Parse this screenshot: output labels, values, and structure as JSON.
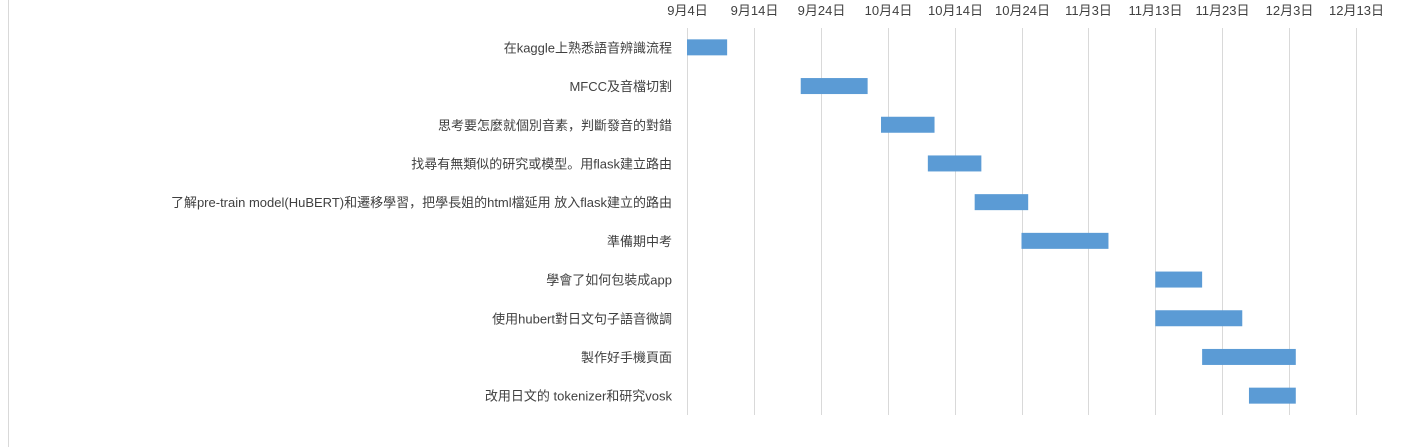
{
  "chart_data": {
    "type": "bar",
    "orientation": "horizontal",
    "title": "",
    "xlabel": "",
    "ylabel": "",
    "x_axis": {
      "position": "top",
      "ticks": [
        "9月4日",
        "9月14日",
        "9月24日",
        "10月4日",
        "10月14日",
        "10月24日",
        "11月3日",
        "11月13日",
        "11月23日",
        "12月3日",
        "12月13日"
      ],
      "tick_dates": [
        "2023-09-04",
        "2023-09-14",
        "2023-09-24",
        "2023-10-04",
        "2023-10-14",
        "2023-10-24",
        "2023-11-03",
        "2023-11-13",
        "2023-11-23",
        "2023-12-03",
        "2023-12-13"
      ],
      "range": [
        "2023-09-04",
        "2023-12-13"
      ],
      "gridlines": true
    },
    "bar_color": "#5b9bd5",
    "grid_color": "#d9d9d9",
    "tasks": [
      {
        "label": "在kaggle上熟悉語音辨識流程",
        "start": "2023-09-04",
        "end": "2023-09-10"
      },
      {
        "label": "MFCC及音檔切割",
        "start": "2023-09-21",
        "end": "2023-10-01"
      },
      {
        "label": "思考要怎麼就個別音素，判斷發音的對錯",
        "start": "2023-10-03",
        "end": "2023-10-11"
      },
      {
        "label": "找尋有無類似的研究或模型。用flask建立路由",
        "start": "2023-10-10",
        "end": "2023-10-18"
      },
      {
        "label": "了解pre-train model(HuBERT)和遷移學習，把學長姐的html檔延用 放入flask建立的路由",
        "start": "2023-10-17",
        "end": "2023-10-25"
      },
      {
        "label": "準備期中考",
        "start": "2023-10-24",
        "end": "2023-11-06"
      },
      {
        "label": "學會了如何包裝成app",
        "start": "2023-11-13",
        "end": "2023-11-20"
      },
      {
        "label": "使用hubert對日文句子語音微調",
        "start": "2023-11-13",
        "end": "2023-11-26"
      },
      {
        "label": "製作好手機頁面",
        "start": "2023-11-20",
        "end": "2023-12-04"
      },
      {
        "label": "改用日文的 tokenizer和研究vosk",
        "start": "2023-11-27",
        "end": "2023-12-04"
      }
    ]
  }
}
